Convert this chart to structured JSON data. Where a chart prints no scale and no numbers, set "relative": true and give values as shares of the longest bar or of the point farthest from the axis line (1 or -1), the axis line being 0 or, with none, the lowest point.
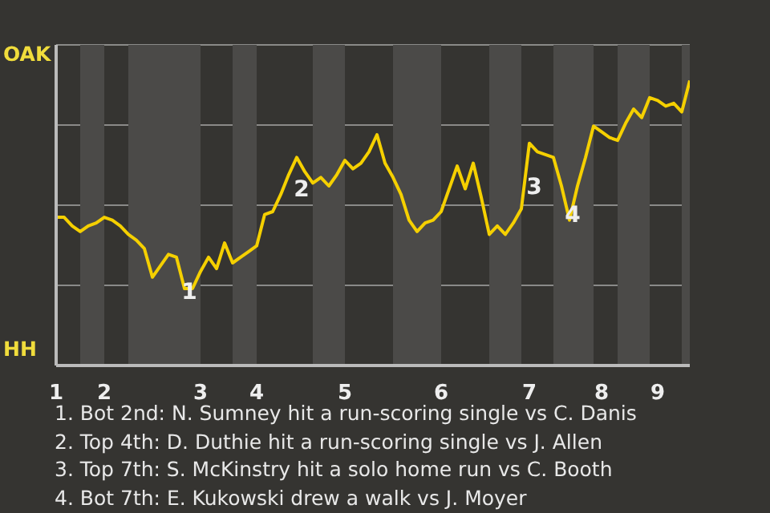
{
  "chart_data": {
    "type": "line",
    "relative": true,
    "categories": [
      "1",
      null,
      null,
      null,
      null,
      null,
      "2",
      null,
      null,
      null,
      null,
      null,
      null,
      null,
      null,
      null,
      null,
      null,
      "3",
      null,
      null,
      null,
      null,
      null,
      null,
      "4",
      null,
      null,
      null,
      null,
      null,
      null,
      null,
      null,
      null,
      null,
      "5",
      null,
      null,
      null,
      null,
      null,
      null,
      null,
      null,
      null,
      null,
      null,
      "6",
      null,
      null,
      null,
      null,
      null,
      null,
      null,
      null,
      null,
      null,
      "7",
      null,
      null,
      null,
      null,
      null,
      null,
      null,
      null,
      "8",
      null,
      null,
      null,
      null,
      null,
      null,
      "9",
      null,
      null,
      null,
      null
    ],
    "series": [
      {
        "color": "#f5d000",
        "values": [
          0.52,
          0.52,
          0.49,
          0.47,
          0.49,
          0.5,
          0.52,
          0.51,
          0.49,
          0.46,
          0.44,
          0.41,
          0.31,
          0.35,
          0.39,
          0.38,
          0.27,
          0.27,
          0.33,
          0.38,
          0.34,
          0.43,
          0.36,
          0.38,
          0.4,
          0.42,
          0.53,
          0.54,
          0.6,
          0.67,
          0.73,
          0.68,
          0.64,
          0.66,
          0.63,
          0.67,
          0.72,
          0.69,
          0.71,
          0.75,
          0.81,
          0.71,
          0.66,
          0.6,
          0.51,
          0.47,
          0.5,
          0.51,
          0.54,
          0.62,
          0.7,
          0.62,
          0.71,
          0.59,
          0.46,
          0.49,
          0.46,
          0.5,
          0.55,
          0.78,
          0.75,
          0.74,
          0.73,
          0.63,
          0.51,
          0.63,
          0.73,
          0.84,
          0.82,
          0.8,
          0.79,
          0.85,
          0.9,
          0.87,
          0.94,
          0.93,
          0.91,
          0.92,
          0.89,
          1
        ]
      }
    ],
    "grid": "y",
    "marker": "none",
    "line_style": "solid",
    "annotations": [
      "OAK",
      "HH",
      "1",
      "2",
      "3",
      "4",
      "1. Bot 2nd: N. Sumney hit a run-scoring single vs C. Danis",
      "2. Top 4th: D. Duthie hit a run-scoring single vs J. Allen",
      "3. Top 7th: S. McKinstry hit a solo home run vs C. Booth",
      "4. Bot 7th: E. Kukowski drew a walk vs J. Moyer"
    ]
  }
}
